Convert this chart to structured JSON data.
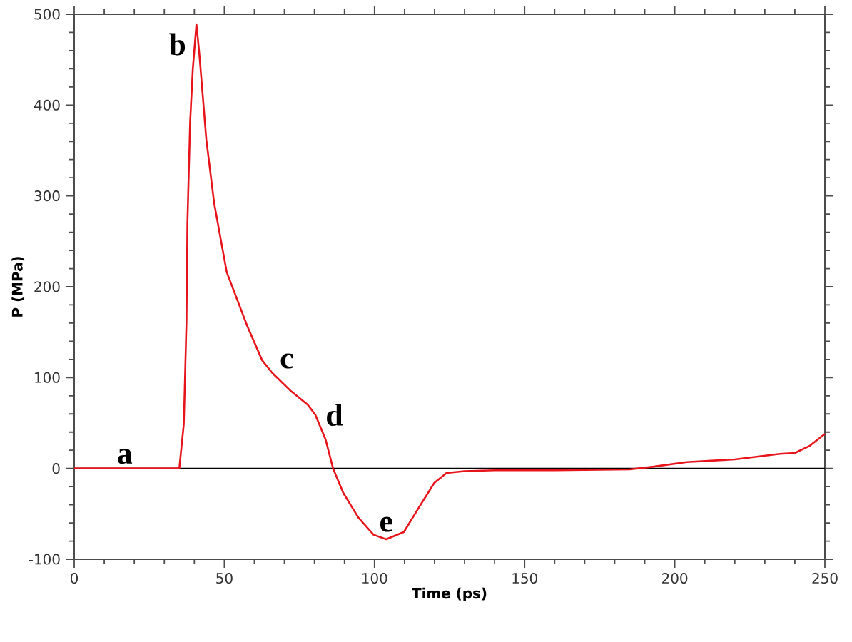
{
  "chart_data": {
    "type": "line",
    "xlabel": "Time (ps)",
    "ylabel": "P (MPa)",
    "xlim": [
      0,
      250
    ],
    "ylim": [
      -100,
      500
    ],
    "xticks": [
      0,
      50,
      100,
      150,
      200,
      250
    ],
    "yticks": [
      -100,
      0,
      100,
      200,
      300,
      400,
      500
    ],
    "marker": "none",
    "line_style": "solid",
    "series": [
      {
        "color": "#e8141b",
        "x": [
          0,
          10,
          20,
          30,
          35,
          36.5,
          37.4,
          37.7,
          38.6,
          39.5,
          40.7,
          41.6,
          44,
          46.6,
          50.8,
          57.6,
          62.6,
          66,
          71.9,
          77.8,
          80.3,
          83.7,
          86.2,
          89.6,
          94.6,
          99.7,
          103.9,
          109.8,
          114.8,
          119.9,
          124,
          130,
          140,
          160,
          185,
          193,
          204,
          220,
          235,
          240,
          245,
          250
        ],
        "values": [
          0,
          0,
          0,
          0,
          0,
          49,
          162,
          270,
          381,
          440,
          489,
          459,
          362,
          292,
          216,
          157,
          119,
          105,
          86,
          70,
          59,
          32,
          0,
          -27,
          -54,
          -73,
          -78,
          -70,
          -43,
          -16,
          -5,
          -3,
          -2,
          -2,
          -1,
          2,
          7,
          10,
          16,
          17,
          25,
          38
        ]
      }
    ],
    "ref_lines": [
      {
        "axis": "y",
        "value": 0,
        "color": "#000000"
      }
    ],
    "annotations": [
      {
        "text": "a",
        "x": 20,
        "y": 0
      },
      {
        "text": "b",
        "x": 40.7,
        "y": 489
      },
      {
        "text": "c",
        "x": 66,
        "y": 105
      },
      {
        "text": "d",
        "x": 80.3,
        "y": 59
      },
      {
        "text": "e",
        "x": 103.9,
        "y": -78
      }
    ]
  }
}
